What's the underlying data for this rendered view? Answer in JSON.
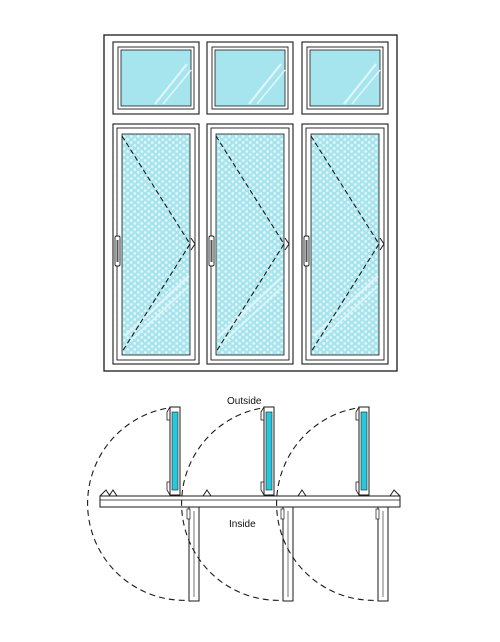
{
  "diagram": {
    "labels": {
      "outside": "Outside",
      "inside": "Inside"
    },
    "colors": {
      "frame_stroke": "#1a1a1a",
      "glass": "#a6e4ee",
      "glass_highlight": "#dff6fa",
      "mesh_dot": "#e4f6f9",
      "plan_glass": "#28c8dc",
      "dash": "#1a1a1a"
    },
    "window": {
      "fixed_transom_count": 3,
      "casement_count": 3,
      "casement_type": "side-hung casement with insect screen",
      "hinge_side": "right",
      "handle_side": "left"
    },
    "icons": [
      "handle-icon",
      "hinge-icon",
      "opening-swing-arc"
    ]
  }
}
